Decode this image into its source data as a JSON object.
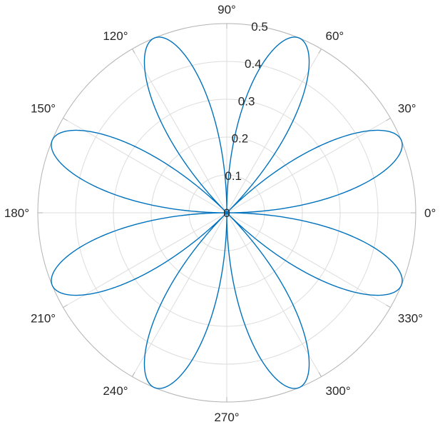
{
  "chart_data": {
    "type": "line",
    "subtype": "polar-rose",
    "title": "",
    "function": "rho = sin(2*theta) * cos(2*theta)",
    "amplitude": 0.5,
    "angular_frequency": 4,
    "theta_range_deg": [
      0,
      360
    ],
    "negative_r_reflected_through_origin": true,
    "petal_count": 8,
    "petal_tip_angles_deg": [
      22.5,
      67.5,
      112.5,
      157.5,
      202.5,
      247.5,
      292.5,
      337.5
    ],
    "rlim": [
      0,
      0.5
    ],
    "r_ticks": [
      0,
      0.1,
      0.2,
      0.3,
      0.4,
      0.5
    ],
    "r_tick_labels": [
      "0",
      "0.1",
      "0.2",
      "0.3",
      "0.4",
      "0.5"
    ],
    "r_axis_angle_deg": 80,
    "theta_ticks_deg": [
      0,
      30,
      60,
      90,
      120,
      150,
      180,
      210,
      240,
      270,
      300,
      330
    ],
    "theta_tick_labels": [
      "0°",
      "30°",
      "60°",
      "90°",
      "120°",
      "150°",
      "180°",
      "210°",
      "240°",
      "270°",
      "300°",
      "330°"
    ],
    "grid": true,
    "legend": null,
    "line_color": "#0072BD",
    "grid_color": "#dcdcdc",
    "axis_ring_color": "#b3b3b3",
    "tick_mark_color": "#b3b3b3",
    "text_color": "#262626",
    "background_color": "#ffffff"
  }
}
